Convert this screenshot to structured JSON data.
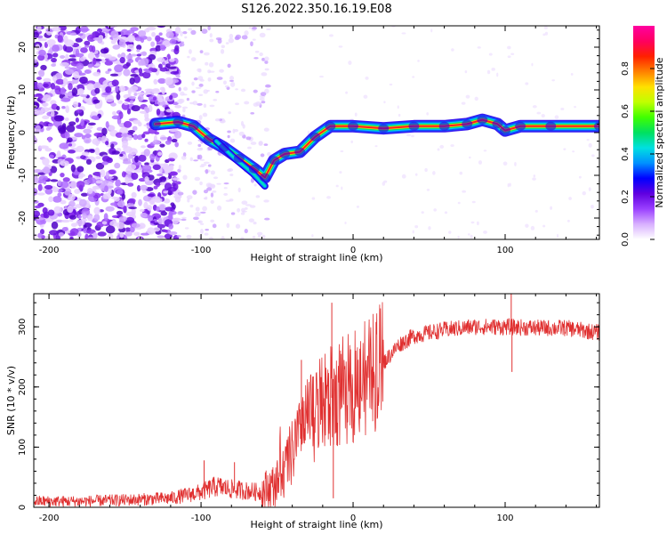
{
  "figure_title": "S126.2022.350.16.19.E08",
  "chart_data": [
    {
      "type": "heatmap",
      "title": "S126.2022.350.16.19.E08",
      "xlabel": "Height of straight line (km)",
      "ylabel": "Frequency (Hz)",
      "xlim": [
        -210,
        162
      ],
      "ylim": [
        -25,
        25
      ],
      "xticks": [
        -200,
        -100,
        0,
        100
      ],
      "yticks": [
        -20,
        -10,
        0,
        10,
        20
      ],
      "colorbar": {
        "label": "Normalized spectral amplitude",
        "range": [
          0,
          1
        ],
        "ticks": [
          "0.0",
          "0.2",
          "0.4",
          "0.6",
          "0.8"
        ],
        "tick_values": [
          0.0,
          0.2,
          0.4,
          0.6,
          0.8
        ],
        "colors": [
          "#ffffff",
          "#d8b0ff",
          "#9a40ff",
          "#6000e0",
          "#0000ff",
          "#0090ff",
          "#00e0e0",
          "#00e060",
          "#40ff00",
          "#c0ff00",
          "#ffe000",
          "#ff8000",
          "#ff2000",
          "#ff0060",
          "#ff00a0"
        ]
      },
      "ridge": [
        {
          "x": -130,
          "y": 2.0
        },
        {
          "x": -115,
          "y": 2.5
        },
        {
          "x": -105,
          "y": 1.5
        },
        {
          "x": -95,
          "y": -1.5
        },
        {
          "x": -85,
          "y": -3.5
        },
        {
          "x": -75,
          "y": -6.0
        },
        {
          "x": -65,
          "y": -8.5
        },
        {
          "x": -58,
          "y": -10.5
        },
        {
          "x": -52,
          "y": -6.5
        },
        {
          "x": -45,
          "y": -5.0
        },
        {
          "x": -35,
          "y": -4.5
        },
        {
          "x": -25,
          "y": -1.0
        },
        {
          "x": -15,
          "y": 1.5
        },
        {
          "x": 0,
          "y": 1.5
        },
        {
          "x": 20,
          "y": 1.0
        },
        {
          "x": 40,
          "y": 1.5
        },
        {
          "x": 60,
          "y": 1.5
        },
        {
          "x": 75,
          "y": 2.0
        },
        {
          "x": 85,
          "y": 3.0
        },
        {
          "x": 95,
          "y": 2.0
        },
        {
          "x": 100,
          "y": 0.5
        },
        {
          "x": 110,
          "y": 1.5
        },
        {
          "x": 130,
          "y": 1.5
        },
        {
          "x": 162,
          "y": 1.5
        }
      ]
    },
    {
      "type": "line",
      "xlabel": "Height of straight line (km)",
      "ylabel": "SNR (10 * v/v)",
      "xlim": [
        -210,
        162
      ],
      "ylim": [
        0,
        355
      ],
      "xticks": [
        -200,
        -100,
        0,
        100
      ],
      "yticks": [
        0,
        100,
        200,
        300
      ],
      "color": "#e03030",
      "series": [
        {
          "name": "SNR",
          "trend": [
            {
              "x": -210,
              "y": 10
            },
            {
              "x": -180,
              "y": 10
            },
            {
              "x": -150,
              "y": 12
            },
            {
              "x": -120,
              "y": 15
            },
            {
              "x": -100,
              "y": 25
            },
            {
              "x": -90,
              "y": 35
            },
            {
              "x": -80,
              "y": 30
            },
            {
              "x": -60,
              "y": 25
            },
            {
              "x": -50,
              "y": 40
            },
            {
              "x": -40,
              "y": 90
            },
            {
              "x": -30,
              "y": 140
            },
            {
              "x": -20,
              "y": 170
            },
            {
              "x": -10,
              "y": 190
            },
            {
              "x": 0,
              "y": 200
            },
            {
              "x": 10,
              "y": 215
            },
            {
              "x": 20,
              "y": 240
            },
            {
              "x": 30,
              "y": 270
            },
            {
              "x": 40,
              "y": 285
            },
            {
              "x": 60,
              "y": 295
            },
            {
              "x": 80,
              "y": 300
            },
            {
              "x": 100,
              "y": 300
            },
            {
              "x": 120,
              "y": 298
            },
            {
              "x": 140,
              "y": 298
            },
            {
              "x": 162,
              "y": 290
            }
          ],
          "spikes": [
            {
              "x": -14,
              "y": 340
            },
            {
              "x": 104,
              "y": 360
            },
            {
              "x": 104.5,
              "y": 225
            },
            {
              "x": -13,
              "y": 15
            },
            {
              "x": -34,
              "y": 245
            },
            {
              "x": -98,
              "y": 78
            },
            {
              "x": -78,
              "y": 75
            }
          ]
        }
      ]
    }
  ]
}
